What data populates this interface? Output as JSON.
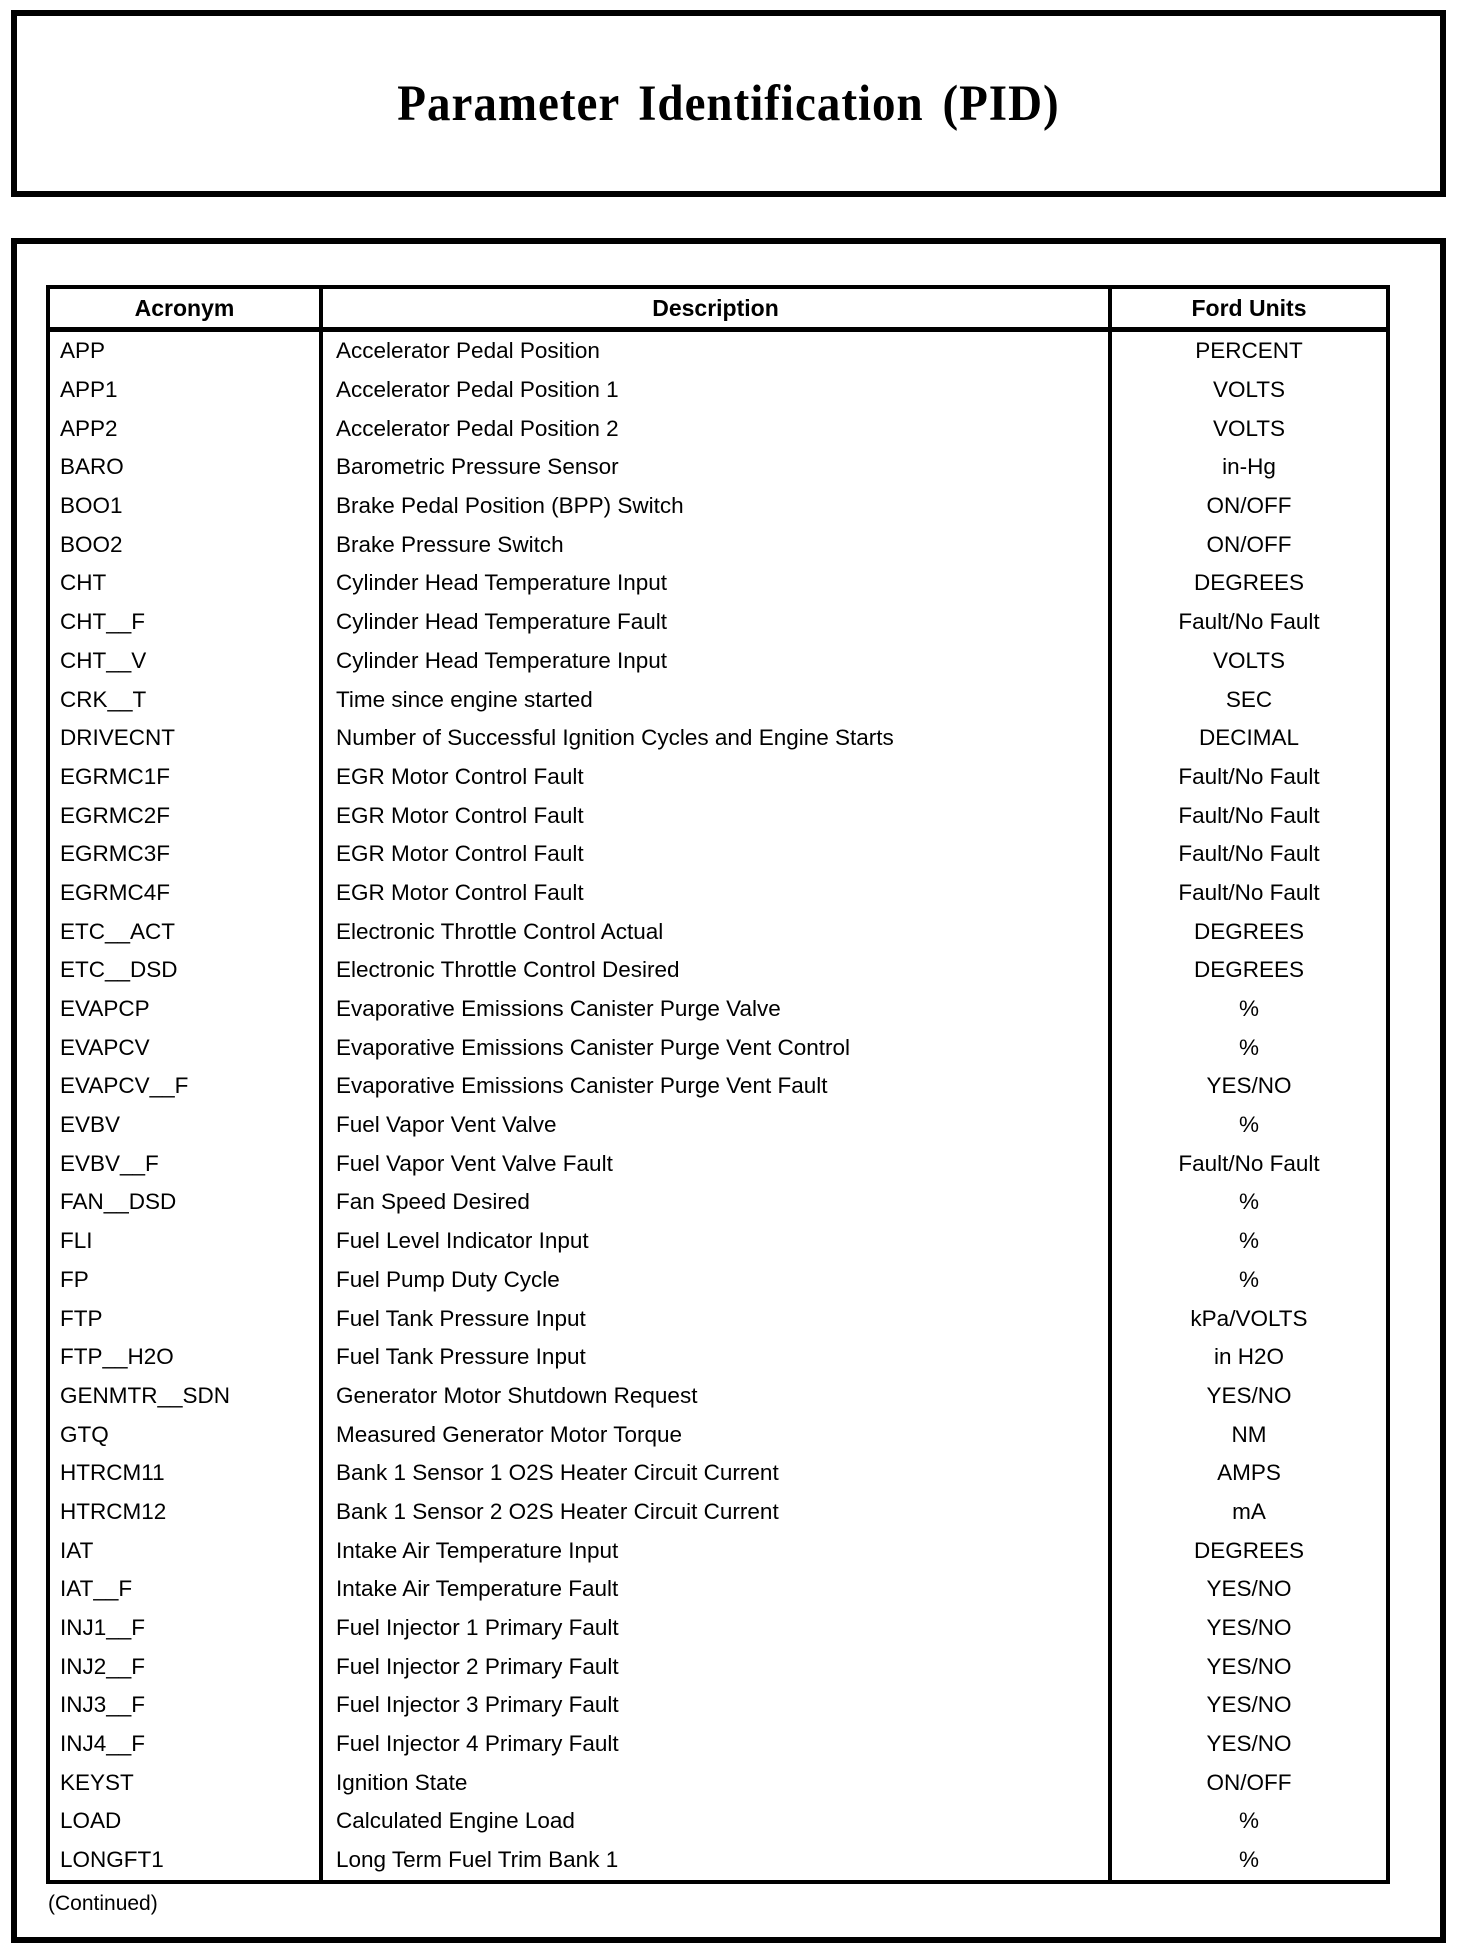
{
  "page": {
    "title": "Parameter Identification (PID)",
    "continued_note": "(Continued)"
  },
  "table": {
    "columns": [
      "Acronym",
      "Description",
      "Ford Units"
    ],
    "rows": [
      {
        "acronym": "APP",
        "description": "Accelerator Pedal Position",
        "units": "PERCENT"
      },
      {
        "acronym": "APP1",
        "description": "Accelerator Pedal Position 1",
        "units": "VOLTS"
      },
      {
        "acronym": "APP2",
        "description": "Accelerator Pedal Position 2",
        "units": "VOLTS"
      },
      {
        "acronym": "BARO",
        "description": "Barometric Pressure Sensor",
        "units": "in-Hg"
      },
      {
        "acronym": "BOO1",
        "description": "Brake Pedal Position (BPP) Switch",
        "units": "ON/OFF"
      },
      {
        "acronym": "BOO2",
        "description": "Brake Pressure Switch",
        "units": "ON/OFF"
      },
      {
        "acronym": "CHT",
        "description": "Cylinder Head Temperature Input",
        "units": "DEGREES"
      },
      {
        "acronym": "CHT__F",
        "description": "Cylinder Head Temperature Fault",
        "units": "Fault/No Fault"
      },
      {
        "acronym": "CHT__V",
        "description": "Cylinder Head Temperature Input",
        "units": "VOLTS"
      },
      {
        "acronym": "CRK__T",
        "description": "Time since engine started",
        "units": "SEC"
      },
      {
        "acronym": "DRIVECNT",
        "description": "Number of Successful Ignition Cycles and Engine Starts",
        "units": "DECIMAL"
      },
      {
        "acronym": "EGRMC1F",
        "description": "EGR Motor Control Fault",
        "units": "Fault/No Fault"
      },
      {
        "acronym": "EGRMC2F",
        "description": "EGR Motor Control Fault",
        "units": "Fault/No Fault"
      },
      {
        "acronym": "EGRMC3F",
        "description": "EGR Motor Control Fault",
        "units": "Fault/No Fault"
      },
      {
        "acronym": "EGRMC4F",
        "description": "EGR Motor Control Fault",
        "units": "Fault/No Fault"
      },
      {
        "acronym": "ETC__ACT",
        "description": "Electronic Throttle Control Actual",
        "units": "DEGREES"
      },
      {
        "acronym": "ETC__DSD",
        "description": "Electronic Throttle Control Desired",
        "units": "DEGREES"
      },
      {
        "acronym": "EVAPCP",
        "description": "Evaporative Emissions Canister Purge Valve",
        "units": "%"
      },
      {
        "acronym": "EVAPCV",
        "description": "Evaporative Emissions Canister Purge Vent Control",
        "units": "%"
      },
      {
        "acronym": "EVAPCV__F",
        "description": "Evaporative Emissions Canister Purge Vent Fault",
        "units": "YES/NO"
      },
      {
        "acronym": "EVBV",
        "description": "Fuel Vapor Vent Valve",
        "units": "%"
      },
      {
        "acronym": "EVBV__F",
        "description": "Fuel Vapor Vent Valve Fault",
        "units": "Fault/No Fault"
      },
      {
        "acronym": "FAN__DSD",
        "description": "Fan Speed Desired",
        "units": "%"
      },
      {
        "acronym": "FLI",
        "description": "Fuel Level Indicator Input",
        "units": "%"
      },
      {
        "acronym": "FP",
        "description": "Fuel Pump Duty Cycle",
        "units": "%"
      },
      {
        "acronym": "FTP",
        "description": "Fuel Tank Pressure Input",
        "units": "kPa/VOLTS"
      },
      {
        "acronym": "FTP__H2O",
        "description": "Fuel Tank Pressure Input",
        "units": "in H2O"
      },
      {
        "acronym": "GENMTR__SDN",
        "description": "Generator Motor Shutdown Request",
        "units": "YES/NO"
      },
      {
        "acronym": "GTQ",
        "description": "Measured Generator Motor Torque",
        "units": "NM"
      },
      {
        "acronym": "HTRCM11",
        "description": "Bank 1 Sensor 1 O2S Heater Circuit Current",
        "units": "AMPS"
      },
      {
        "acronym": "HTRCM12",
        "description": "Bank 1 Sensor 2 O2S Heater Circuit Current",
        "units": "mA"
      },
      {
        "acronym": "IAT",
        "description": "Intake Air Temperature Input",
        "units": "DEGREES"
      },
      {
        "acronym": "IAT__F",
        "description": "Intake Air Temperature Fault",
        "units": "YES/NO"
      },
      {
        "acronym": "INJ1__F",
        "description": "Fuel Injector 1 Primary Fault",
        "units": "YES/NO"
      },
      {
        "acronym": "INJ2__F",
        "description": "Fuel Injector 2 Primary Fault",
        "units": "YES/NO"
      },
      {
        "acronym": "INJ3__F",
        "description": "Fuel Injector 3 Primary Fault",
        "units": "YES/NO"
      },
      {
        "acronym": "INJ4__F",
        "description": "Fuel Injector 4 Primary Fault",
        "units": "YES/NO"
      },
      {
        "acronym": "KEYST",
        "description": "Ignition State",
        "units": "ON/OFF"
      },
      {
        "acronym": "LOAD",
        "description": "Calculated Engine Load",
        "units": "%"
      },
      {
        "acronym": "LONGFT1",
        "description": "Long Term Fuel Trim Bank 1",
        "units": "%"
      }
    ]
  }
}
